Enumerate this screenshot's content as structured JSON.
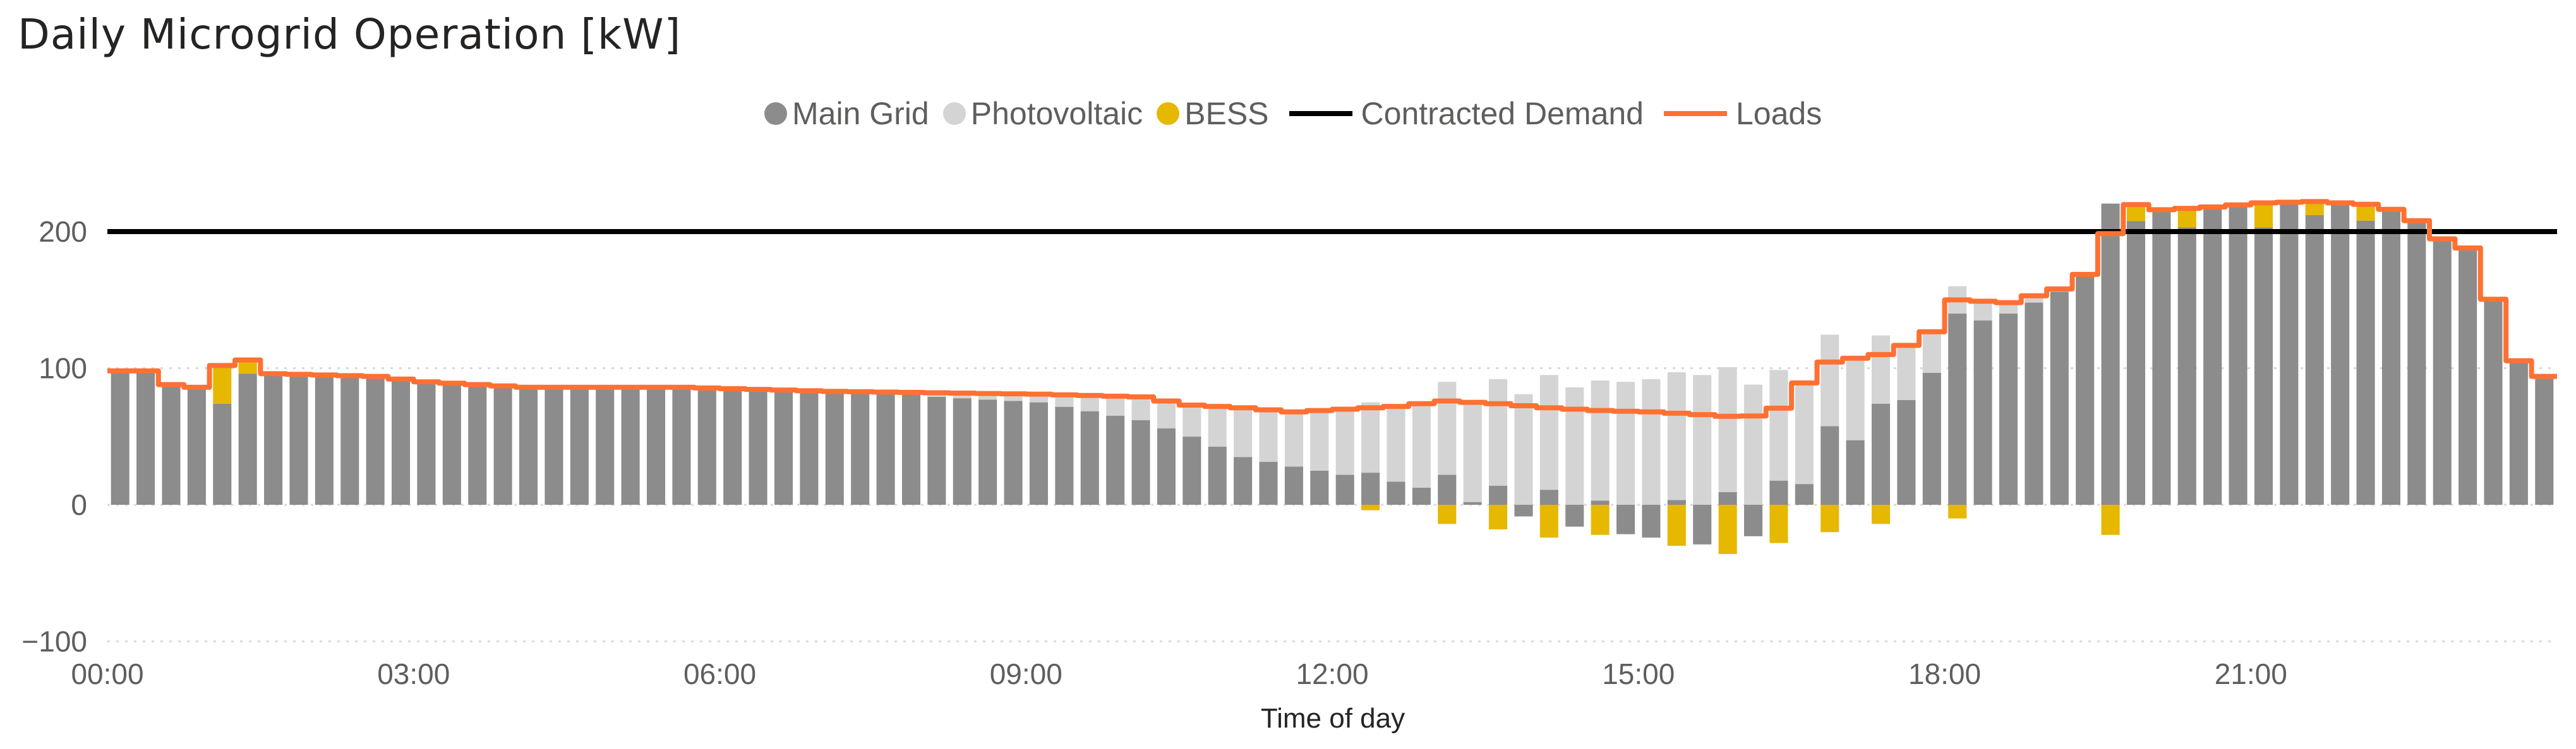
{
  "title": "Daily Microgrid Operation [kW]",
  "legend": {
    "main_grid": "Main Grid",
    "photovoltaic": "Photovoltaic",
    "bess": "BESS",
    "contracted_demand": "Contracted Demand",
    "loads": "Loads"
  },
  "colors": {
    "main_grid": "#8c8c8c",
    "photovoltaic": "#d4d4d4",
    "bess": "#e6b800",
    "contracted_demand": "#000000",
    "loads": "#ff7033",
    "gridline": "#d9d9d9",
    "axis_text": "#605e5c"
  },
  "chart_data": {
    "type": "bar",
    "stacked": true,
    "title": "Daily Microgrid Operation [kW]",
    "xlabel": "Time of day",
    "ylabel": "",
    "ylim": [
      -100,
      250
    ],
    "yticks": [
      {
        "value": 200,
        "label": "200"
      },
      {
        "value": 100,
        "label": "100"
      },
      {
        "value": 0,
        "label": "0"
      },
      {
        "value": -100,
        "label": "−100"
      }
    ],
    "xticks": [
      {
        "hour": 0,
        "label": "00:00"
      },
      {
        "hour": 3,
        "label": "03:00"
      },
      {
        "hour": 6,
        "label": "06:00"
      },
      {
        "hour": 9,
        "label": "09:00"
      },
      {
        "hour": 12,
        "label": "12:00"
      },
      {
        "hour": 15,
        "label": "15:00"
      },
      {
        "hour": 18,
        "label": "18:00"
      },
      {
        "hour": 21,
        "label": "21:00"
      }
    ],
    "interval_minutes": 15,
    "contracted_demand": 200,
    "load_profile_hourly": [
      [
        0,
        98
      ],
      [
        0.25,
        98
      ],
      [
        0.5,
        88
      ],
      [
        0.75,
        86
      ],
      [
        1,
        102
      ],
      [
        1.25,
        106
      ],
      [
        1.5,
        96
      ],
      [
        2,
        95
      ],
      [
        2.5,
        94
      ],
      [
        3,
        90
      ],
      [
        4,
        86
      ],
      [
        5,
        86
      ],
      [
        5.5,
        86
      ],
      [
        6,
        85
      ],
      [
        7,
        83
      ],
      [
        8,
        82
      ],
      [
        9,
        81
      ],
      [
        10,
        79
      ],
      [
        10.5,
        73
      ],
      [
        11,
        71
      ],
      [
        11.5,
        68
      ],
      [
        12,
        70
      ],
      [
        12.5,
        72
      ],
      [
        13,
        76
      ],
      [
        13.5,
        74
      ],
      [
        14,
        71
      ],
      [
        14.5,
        69
      ],
      [
        15,
        68
      ],
      [
        15.5,
        66
      ],
      [
        15.9,
        64
      ],
      [
        16.2,
        67
      ],
      [
        16.7,
        104
      ],
      [
        17.25,
        110
      ],
      [
        17.7,
        122
      ],
      [
        18,
        150
      ],
      [
        18.5,
        148
      ],
      [
        19,
        158
      ],
      [
        19.4,
        175
      ],
      [
        19.6,
        222
      ],
      [
        20,
        216
      ],
      [
        20.5,
        218
      ],
      [
        21,
        221
      ],
      [
        21.5,
        222
      ],
      [
        22,
        220
      ],
      [
        22.4,
        214
      ],
      [
        22.7,
        196
      ],
      [
        23,
        188
      ],
      [
        23.2,
        164
      ],
      [
        23.4,
        110
      ],
      [
        23.75,
        94
      ]
    ],
    "pv_profile_hourly": [
      [
        0,
        0
      ],
      [
        7.5,
        0
      ],
      [
        8,
        3
      ],
      [
        9,
        6
      ],
      [
        10,
        17
      ],
      [
        10.5,
        23
      ],
      [
        11,
        36
      ],
      [
        11.5,
        40
      ],
      [
        12,
        48
      ],
      [
        12.5,
        55
      ],
      [
        13,
        68
      ],
      [
        13.5,
        78
      ],
      [
        14,
        84
      ],
      [
        14.5,
        88
      ],
      [
        15,
        92
      ],
      [
        15.5,
        95
      ],
      [
        16,
        88
      ],
      [
        16.5,
        74
      ],
      [
        17,
        60
      ],
      [
        17.5,
        40
      ],
      [
        18,
        20
      ],
      [
        18.5,
        8
      ],
      [
        19,
        2
      ],
      [
        19.5,
        0
      ],
      [
        23.75,
        0
      ]
    ],
    "bess_discharge_events": [
      {
        "hour": 0.9,
        "kw": 12
      },
      {
        "hour": 1.1,
        "kw": 16
      },
      {
        "hour": 1.25,
        "kw": 10
      },
      {
        "hour": 19.7,
        "kw": 12
      },
      {
        "hour": 20.2,
        "kw": 14
      },
      {
        "hour": 21.0,
        "kw": 18
      },
      {
        "hour": 21.5,
        "kw": 10
      },
      {
        "hour": 22.0,
        "kw": 12
      }
    ],
    "bess_charge_events": [
      {
        "hour": 12.2,
        "kw": -4
      },
      {
        "hour": 13,
        "kw": -14
      },
      {
        "hour": 13.5,
        "kw": -18
      },
      {
        "hour": 14,
        "kw": -24
      },
      {
        "hour": 14.6,
        "kw": -22
      },
      {
        "hour": 15.2,
        "kw": -30
      },
      {
        "hour": 15.7,
        "kw": -36
      },
      {
        "hour": 16.3,
        "kw": -28
      },
      {
        "hour": 16.8,
        "kw": -20
      },
      {
        "hour": 17.3,
        "kw": -14
      },
      {
        "hour": 17.9,
        "kw": -10
      },
      {
        "hour": 19.4,
        "kw": -22
      }
    ]
  }
}
